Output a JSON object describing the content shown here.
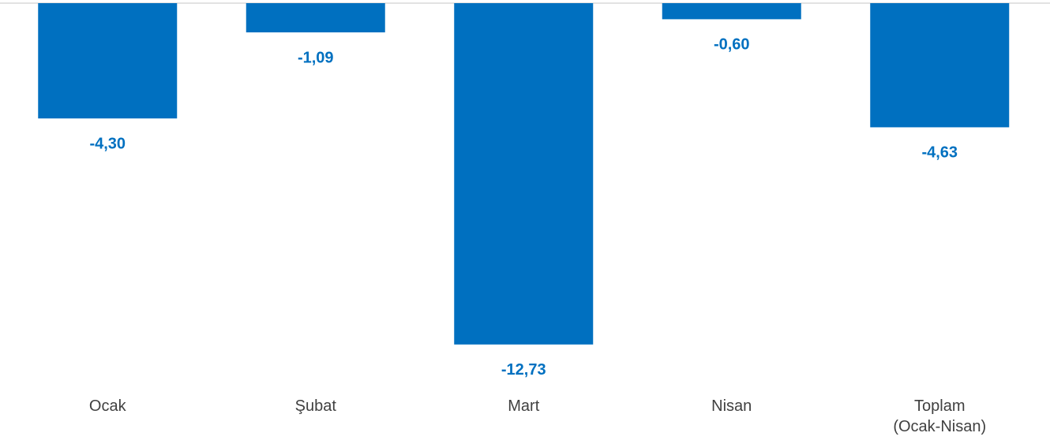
{
  "chart_data": {
    "type": "bar",
    "categories": [
      "Ocak",
      "Şubat",
      "Mart",
      "Nisan",
      "Toplam\n(Ocak-Nisan)"
    ],
    "values": [
      -4.3,
      -1.09,
      -12.73,
      -0.6,
      -4.63
    ],
    "value_labels": [
      "-4,30",
      "-1,09",
      "-12,73",
      "-0,60",
      "-4,63"
    ],
    "color": "#0070c0",
    "ylim": [
      -13,
      0
    ]
  }
}
